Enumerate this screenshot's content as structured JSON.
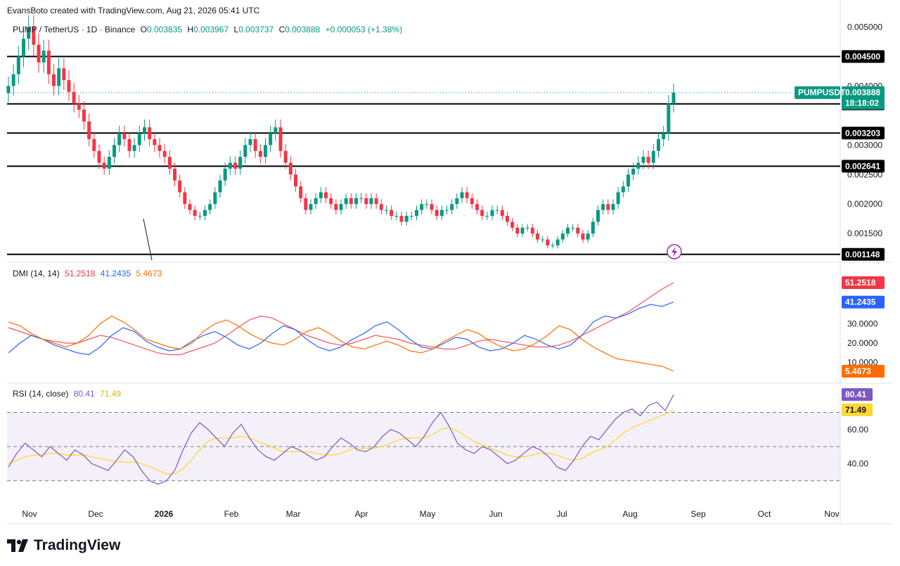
{
  "header": {
    "attribution": "EvansBoto created with TradingView.com, Aug 21, 2026 05:41 UTC"
  },
  "ohlc": {
    "symbol": "PUMP / TetherUS · 1D · Binance",
    "o_label": "O",
    "o": "0.003835",
    "h_label": "H",
    "h": "0.003967",
    "l_label": "L",
    "l": "0.003737",
    "c_label": "C",
    "c": "0.003888",
    "change": "+0.000053 (+1.38%)"
  },
  "dmi": {
    "label": "DMI (14, 14)",
    "adx": "51.2518",
    "plus": "41.2435",
    "minus": "5.4673"
  },
  "rsi": {
    "label": "RSI (14, close)",
    "rsi": "80.41",
    "ma": "71.49"
  },
  "price_tag": {
    "symbol": "PUMPUSDT",
    "price": "0.003888",
    "countdown": "18:18:02"
  },
  "footer": {
    "brand": "TradingView"
  },
  "colors": {
    "up": "#089981",
    "down": "#f23645",
    "adx": "#f7525f",
    "plus_di": "#2962ff",
    "minus_di": "#ff6d00",
    "rsi": "#7e57c2",
    "rsi_ma": "#fdd835",
    "level": "#000000"
  },
  "chart_data": [
    {
      "type": "candlestick",
      "title": "PUMP / TetherUS · 1D · Binance",
      "ylim": [
        0.00105,
        0.0051
      ],
      "y_ticks": [
        "0.005000",
        "0.004000",
        "0.003000",
        "0.002500",
        "0.002000",
        "0.001500"
      ],
      "x_ticks": [
        "Nov",
        "Dec",
        "2026",
        "Feb",
        "Mar",
        "Apr",
        "May",
        "Jun",
        "Jul",
        "Aug",
        "Sep",
        "Oct",
        "Nov"
      ],
      "horizontal_levels": [
        "0.004500",
        "0.003698",
        "0.003203",
        "0.002641",
        "0.001148"
      ],
      "last_price": 0.003888,
      "candles_close": [
        0.004,
        0.0042,
        0.0045,
        0.0048,
        0.005,
        0.0047,
        0.0044,
        0.0046,
        0.0042,
        0.004,
        0.0043,
        0.0041,
        0.0039,
        0.0037,
        0.0036,
        0.0034,
        0.0031,
        0.0029,
        0.0027,
        0.0026,
        0.0028,
        0.003,
        0.0032,
        0.0031,
        0.0029,
        0.003,
        0.0032,
        0.0033,
        0.0031,
        0.003,
        0.0029,
        0.0028,
        0.0026,
        0.0024,
        0.0022,
        0.002,
        0.0019,
        0.0018,
        0.0018,
        0.0019,
        0.002,
        0.0022,
        0.0024,
        0.0026,
        0.0027,
        0.0026,
        0.0028,
        0.003,
        0.0031,
        0.0029,
        0.0028,
        0.003,
        0.0032,
        0.0033,
        0.0029,
        0.0027,
        0.0025,
        0.0023,
        0.0021,
        0.0019,
        0.002,
        0.0021,
        0.0022,
        0.0021,
        0.002,
        0.0019,
        0.002,
        0.0021,
        0.002,
        0.0021,
        0.0021,
        0.002,
        0.0021,
        0.002,
        0.0019,
        0.0019,
        0.0018,
        0.0018,
        0.0017,
        0.0018,
        0.0018,
        0.0019,
        0.002,
        0.002,
        0.0019,
        0.0018,
        0.0019,
        0.0019,
        0.002,
        0.0021,
        0.0022,
        0.0021,
        0.002,
        0.0019,
        0.0018,
        0.0018,
        0.0019,
        0.0019,
        0.0018,
        0.0017,
        0.0016,
        0.0015,
        0.0016,
        0.0016,
        0.0015,
        0.0014,
        0.0014,
        0.0013,
        0.0013,
        0.0014,
        0.0015,
        0.0016,
        0.0016,
        0.0015,
        0.0014,
        0.0015,
        0.0017,
        0.0019,
        0.002,
        0.0019,
        0.002,
        0.0022,
        0.0023,
        0.0025,
        0.0026,
        0.0027,
        0.0028,
        0.0027,
        0.0029,
        0.0031,
        0.0032,
        0.0037,
        0.00389
      ]
    },
    {
      "type": "line",
      "title": "DMI (14, 14)",
      "ylim": [
        0,
        60
      ],
      "y_ticks": [
        "30.0000",
        "20.0000",
        "10.0000"
      ],
      "series": [
        {
          "name": "ADX",
          "last": 51.2518,
          "values": [
            28,
            26,
            24,
            22,
            21,
            20,
            20,
            22,
            24,
            23,
            21,
            19,
            17,
            15,
            14,
            14,
            16,
            18,
            20,
            24,
            28,
            32,
            34,
            33,
            30,
            27,
            24,
            22,
            20,
            19,
            20,
            22,
            24,
            23,
            22,
            20,
            19,
            18,
            17,
            17,
            19,
            21,
            22,
            21,
            20,
            19,
            18,
            18,
            19,
            21,
            24,
            27,
            30,
            33,
            36,
            40,
            44,
            48,
            51.25
          ]
        },
        {
          "name": "+DI",
          "last": 41.2435,
          "values": [
            15,
            20,
            24,
            22,
            19,
            17,
            15,
            14,
            18,
            24,
            28,
            26,
            21,
            18,
            16,
            17,
            21,
            24,
            26,
            23,
            19,
            17,
            20,
            25,
            29,
            27,
            22,
            18,
            16,
            18,
            22,
            25,
            29,
            31,
            27,
            22,
            18,
            17,
            20,
            23,
            22,
            18,
            16,
            17,
            20,
            24,
            22,
            19,
            17,
            19,
            24,
            31,
            34,
            33,
            35,
            38,
            40,
            39,
            41.24
          ]
        },
        {
          "name": "-DI",
          "last": 5.4673,
          "values": [
            31,
            29,
            25,
            22,
            20,
            18,
            20,
            24,
            30,
            34,
            31,
            27,
            22,
            20,
            18,
            17,
            20,
            26,
            30,
            32,
            29,
            25,
            22,
            20,
            19,
            22,
            26,
            28,
            25,
            21,
            18,
            17,
            19,
            21,
            19,
            16,
            15,
            17,
            21,
            24,
            27,
            25,
            21,
            18,
            16,
            17,
            20,
            24,
            29,
            27,
            22,
            18,
            15,
            12,
            11,
            10,
            9,
            8,
            5.47
          ]
        }
      ]
    },
    {
      "type": "line",
      "title": "RSI (14, close)",
      "ylim": [
        20,
        85
      ],
      "y_ticks": [
        "60.00",
        "40.00"
      ],
      "bands": [
        70,
        50,
        30
      ],
      "series": [
        {
          "name": "RSI",
          "last": 80.41,
          "values": [
            38,
            46,
            52,
            48,
            44,
            50,
            46,
            42,
            48,
            45,
            40,
            38,
            36,
            42,
            48,
            44,
            36,
            30,
            28,
            30,
            36,
            48,
            58,
            64,
            60,
            55,
            50,
            58,
            63,
            55,
            48,
            44,
            42,
            46,
            50,
            48,
            45,
            42,
            44,
            50,
            55,
            52,
            48,
            47,
            50,
            56,
            60,
            58,
            54,
            50,
            56,
            64,
            70,
            62,
            52,
            48,
            46,
            50,
            48,
            44,
            40,
            42,
            46,
            50,
            48,
            44,
            38,
            36,
            42,
            50,
            56,
            54,
            60,
            66,
            70,
            72,
            68,
            74,
            76,
            71,
            80.41
          ]
        },
        {
          "name": "MA",
          "last": 71.49,
          "values": [
            40,
            42,
            44,
            45,
            45,
            46,
            46,
            45,
            45,
            45,
            44,
            43,
            42,
            41,
            41,
            41,
            40,
            38,
            36,
            34,
            34,
            37,
            42,
            48,
            53,
            55,
            55,
            55,
            56,
            55,
            53,
            51,
            49,
            47,
            47,
            47,
            47,
            46,
            45,
            45,
            46,
            48,
            49,
            49,
            49,
            50,
            52,
            54,
            55,
            55,
            55,
            57,
            60,
            61,
            59,
            56,
            53,
            51,
            49,
            47,
            45,
            44,
            44,
            45,
            46,
            46,
            45,
            43,
            42,
            43,
            46,
            48,
            50,
            54,
            58,
            61,
            63,
            65,
            67,
            69,
            71.49
          ]
        }
      ]
    }
  ]
}
